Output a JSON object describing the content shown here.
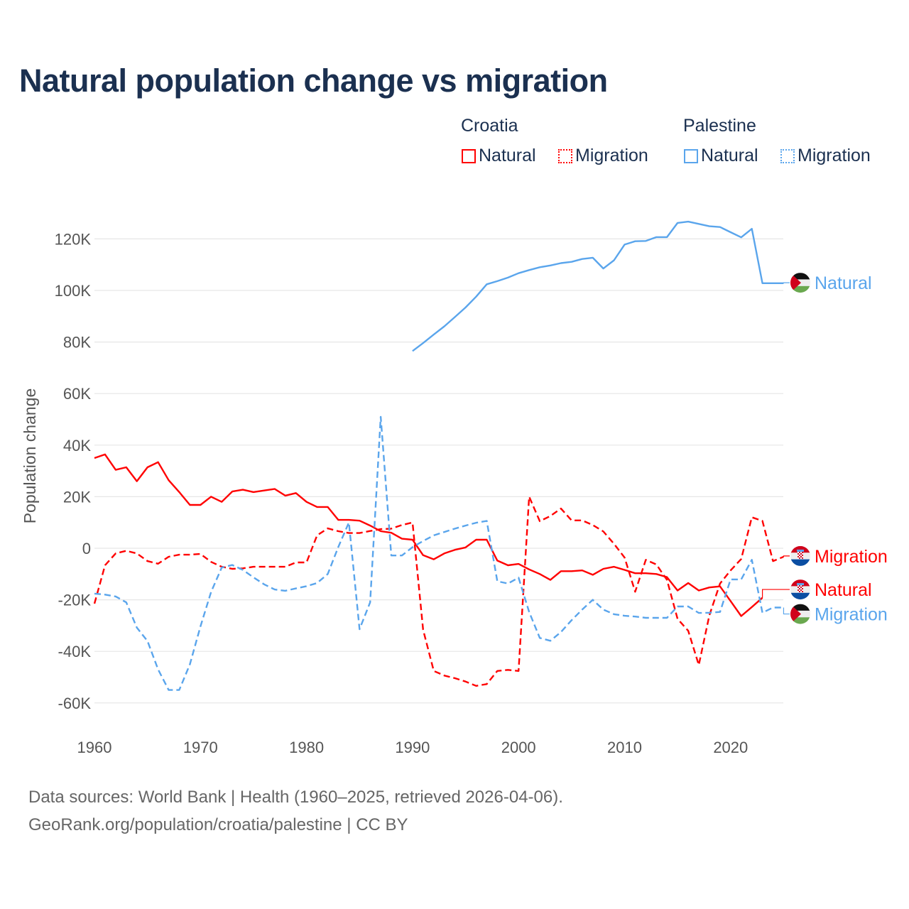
{
  "chart_data": {
    "type": "line",
    "title": "Natural population change vs migration",
    "xlabel": "",
    "ylabel": "Population change",
    "xlim": [
      1960,
      2025
    ],
    "ylim": [
      -70000,
      130000
    ],
    "grid": true,
    "x_ticks": [
      "1960",
      "1970",
      "1980",
      "1990",
      "2000",
      "2010",
      "2020"
    ],
    "y_ticks": [
      {
        "v": 120000,
        "label": "120K"
      },
      {
        "v": 100000,
        "label": "100K"
      },
      {
        "v": 80000,
        "label": "80K"
      },
      {
        "v": 60000,
        "label": "60K"
      },
      {
        "v": 40000,
        "label": "40K"
      },
      {
        "v": 20000,
        "label": "20K"
      },
      {
        "v": 0,
        "label": "0"
      },
      {
        "v": -20000,
        "label": "-20K"
      },
      {
        "v": -40000,
        "label": "-40K"
      },
      {
        "v": -60000,
        "label": "-60K"
      }
    ],
    "legend": {
      "placement": "top-right",
      "groups": [
        {
          "name": "Croatia",
          "items": [
            "Natural",
            "Migration"
          ]
        },
        {
          "name": "Palestine",
          "items": [
            "Natural",
            "Migration"
          ]
        }
      ]
    },
    "series": [
      {
        "name": "Croatia Natural",
        "country": "Croatia",
        "kind": "Natural",
        "color": "#ff0000",
        "dash": false,
        "start": 1960,
        "values": [
          35,
          36.4,
          30.4,
          31.4,
          26,
          31.4,
          33.4,
          26.4,
          21.8,
          16.8,
          16.8,
          20,
          18,
          22,
          22.7,
          21.8,
          22.4,
          23,
          20.4,
          21.4,
          18,
          16,
          16,
          11,
          11,
          10.7,
          8.8,
          6.6,
          6,
          3.7,
          3.3,
          -2.7,
          -4.3,
          -2,
          -0.6,
          0.3,
          3.3,
          3.3,
          -4.8,
          -6.6,
          -6.1,
          -8.2,
          -10,
          -12.3,
          -8.9,
          -8.9,
          -8.6,
          -10.3,
          -8,
          -7.2,
          -8.4,
          -9.7,
          -9.7,
          -10,
          -11.2,
          -16.4,
          -13.5,
          -16.4,
          -15.2,
          -14.8,
          -20.5,
          -26.3,
          -22.8,
          -19.2
        ]
      },
      {
        "name": "Croatia Migration",
        "country": "Croatia",
        "kind": "Migration",
        "color": "#ff0000",
        "dash": true,
        "start": 1960,
        "values": [
          -21.5,
          -6.6,
          -2,
          -1,
          -2,
          -5,
          -6,
          -3.3,
          -2.5,
          -2.5,
          -2.2,
          -5.3,
          -7.2,
          -8,
          -7.8,
          -7.2,
          -7.2,
          -7.2,
          -7.2,
          -5.5,
          -5.5,
          5,
          7.7,
          6.6,
          5.9,
          5.9,
          6.7,
          7.4,
          7.6,
          9,
          10,
          -31.6,
          -47.6,
          -49.4,
          -50.4,
          -51.7,
          -53.4,
          -52.7,
          -47.6,
          -47.2,
          -47.6,
          20,
          10.5,
          12.5,
          15.4,
          10.8,
          10.8,
          9,
          6.5,
          1.7,
          -3.6,
          -16.9,
          -4.5,
          -6.3,
          -12.3,
          -27.4,
          -32,
          -45.3,
          -26,
          -13.7,
          -8.6,
          -4.2,
          12,
          10.6,
          -5,
          -3.3
        ]
      },
      {
        "name": "Palestine Natural",
        "country": "Palestine",
        "kind": "Natural",
        "color": "#5aa5ec",
        "dash": false,
        "start": 1990,
        "values": [
          76.5,
          79.6,
          82.9,
          86.1,
          89.7,
          93.4,
          97.6,
          102.4,
          103.6,
          105,
          106.7,
          107.9,
          109,
          109.7,
          110.6,
          111.1,
          112.2,
          112.7,
          108.5,
          111.7,
          117.8,
          119.1,
          119.2,
          120.7,
          120.7,
          126.2,
          126.7,
          125.8,
          124.9,
          124.6,
          122.6,
          120.6,
          123.9,
          102.8,
          102.8,
          102.8
        ]
      },
      {
        "name": "Palestine Migration",
        "country": "Palestine",
        "kind": "Migration",
        "color": "#5aa5ec",
        "dash": true,
        "start": 1960,
        "values": [
          -17.6,
          -18,
          -18.7,
          -21,
          -30.8,
          -36,
          -47,
          -55,
          -55,
          -45,
          -30.3,
          -17,
          -7.5,
          -6.5,
          -8.4,
          -11.3,
          -14,
          -16,
          -16.5,
          -15.6,
          -14.7,
          -13.5,
          -10,
          0.5,
          10,
          -31.4,
          -21,
          51,
          -2.8,
          -2.8,
          0.4,
          2.8,
          5,
          6.3,
          7.6,
          8.8,
          9.9,
          10.6,
          -12.8,
          -13.7,
          -11.4,
          -24.7,
          -34.8,
          -35.9,
          -32.5,
          -27.9,
          -23.8,
          -20,
          -23.8,
          -25.6,
          -26.2,
          -26.5,
          -27,
          -27,
          -27,
          -22.6,
          -22.6,
          -25.1,
          -25,
          -24.7,
          -12.1,
          -12.1,
          -4.5,
          -25,
          -23,
          -23
        ]
      }
    ],
    "value_unit": "thousands",
    "end_labels": [
      {
        "series": "Palestine Natural",
        "label": "Natural",
        "flag": "palestine-flag-icon",
        "at": 103
      },
      {
        "series": "Croatia Migration",
        "label": "Migration",
        "flag": "croatia-flag-icon",
        "at": -3
      },
      {
        "series": "Croatia Natural",
        "label": "Natural",
        "flag": "croatia-flag-icon",
        "at": -16
      },
      {
        "series": "Palestine Migration",
        "label": "Migration",
        "flag": "palestine-flag-icon",
        "at": -25.5
      }
    ]
  },
  "footer": {
    "line1": "Data sources: World Bank | Health (1960–2025, retrieved 2026-04-06).",
    "line2": "GeoRank.org/population/croatia/palestine | CC BY"
  }
}
